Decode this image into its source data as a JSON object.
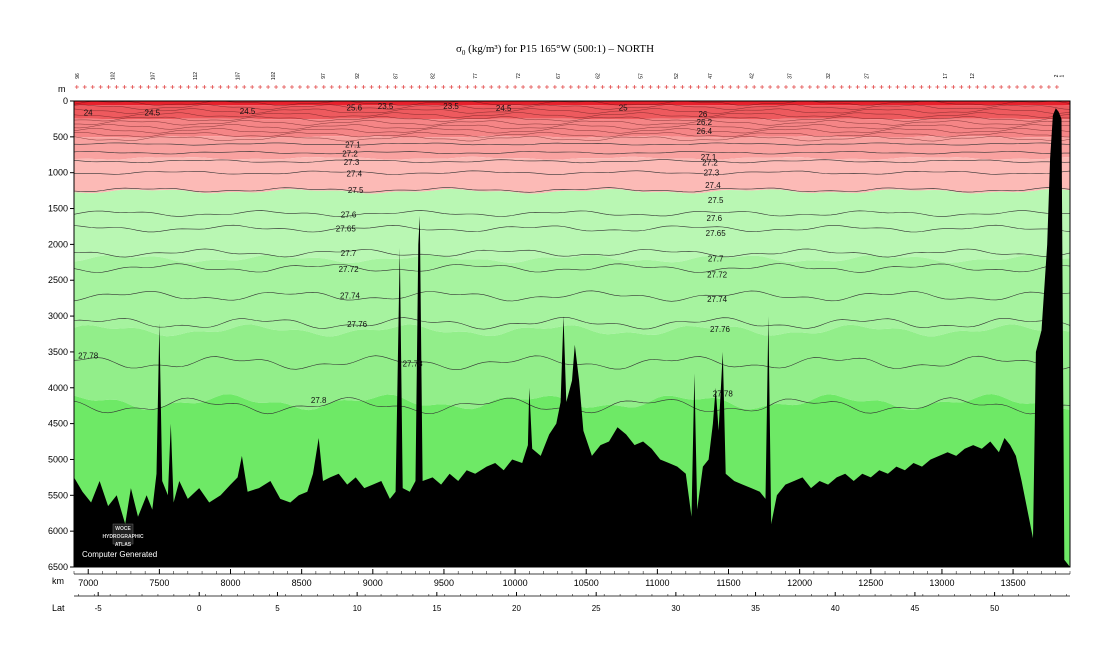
{
  "chart_data": {
    "type": "area",
    "title_prefix": "σ",
    "title_sub": "0",
    "title_rest": " (kg/m³) for P15 165°W (500:1) – NORTH",
    "x_axis_unit": "km",
    "y_axis_unit": "m",
    "lat_axis_label": "Lat",
    "xlim": [
      6900,
      13900
    ],
    "ylim": [
      0,
      6500
    ],
    "x_ticks": [
      7000,
      7500,
      8000,
      8500,
      9000,
      9500,
      10000,
      10500,
      11000,
      11500,
      12000,
      12500,
      13000,
      13500
    ],
    "y_ticks": [
      0,
      500,
      1000,
      1500,
      2000,
      2500,
      3000,
      3500,
      4000,
      4500,
      5000,
      5500,
      6000,
      6500
    ],
    "lat_ticks": [
      {
        "label": "-5",
        "km": 7070
      },
      {
        "label": "0",
        "km": 7780
      },
      {
        "label": "5",
        "km": 8330
      },
      {
        "label": "10",
        "km": 8890
      },
      {
        "label": "15",
        "km": 9450
      },
      {
        "label": "20",
        "km": 10010
      },
      {
        "label": "25",
        "km": 10570
      },
      {
        "label": "30",
        "km": 11130
      },
      {
        "label": "35",
        "km": 11690
      },
      {
        "label": "40",
        "km": 12250
      },
      {
        "label": "45",
        "km": 12810
      },
      {
        "label": "50",
        "km": 13370
      }
    ],
    "station_labels": [
      {
        "label": "96",
        "km": 6920
      },
      {
        "label": "102",
        "km": 7170
      },
      {
        "label": "107",
        "km": 7450
      },
      {
        "label": "112",
        "km": 7750
      },
      {
        "label": "107",
        "km": 8050
      },
      {
        "label": "102",
        "km": 8300
      },
      {
        "label": "97",
        "km": 8650
      },
      {
        "label": "92",
        "km": 8890
      },
      {
        "label": "87",
        "km": 9160
      },
      {
        "label": "82",
        "km": 9420
      },
      {
        "label": "77",
        "km": 9720
      },
      {
        "label": "72",
        "km": 10020
      },
      {
        "label": "67",
        "km": 10300
      },
      {
        "label": "62",
        "km": 10580
      },
      {
        "label": "57",
        "km": 10880
      },
      {
        "label": "52",
        "km": 11130
      },
      {
        "label": "47",
        "km": 11370
      },
      {
        "label": "42",
        "km": 11660
      },
      {
        "label": "37",
        "km": 11930
      },
      {
        "label": "32",
        "km": 12200
      },
      {
        "label": "27",
        "km": 12470
      },
      {
        "label": "17",
        "km": 13020
      },
      {
        "label": "12",
        "km": 13210
      },
      {
        "label": "2",
        "km": 13800
      },
      {
        "label": "1",
        "km": 13840
      }
    ],
    "color_bands": [
      {
        "from": 0,
        "to": 60,
        "color": "#e8202c"
      },
      {
        "from": 60,
        "to": 250,
        "color": "#ee5a5e"
      },
      {
        "from": 250,
        "to": 500,
        "color": "#f58586"
      },
      {
        "from": 500,
        "to": 800,
        "color": "#f9a2a0"
      },
      {
        "from": 800,
        "to": 1260,
        "color": "#fcbab6"
      },
      {
        "from": 1260,
        "to": 2200,
        "color": "#b9f7b3"
      },
      {
        "from": 2200,
        "to": 3200,
        "color": "#a6f39f"
      },
      {
        "from": 3200,
        "to": 4200,
        "color": "#92ee8a"
      },
      {
        "from": 4200,
        "to": 6500,
        "color": "#6ee966"
      }
    ],
    "isopycnals": [
      {
        "label": "27.1",
        "depth": 600
      },
      {
        "label": "27.2",
        "depth": 720
      },
      {
        "label": "27.3",
        "depth": 840
      },
      {
        "label": "27.4",
        "depth": 1000
      },
      {
        "label": "27.5",
        "depth": 1240
      },
      {
        "label": "27.6",
        "depth": 1570
      },
      {
        "label": "27.65",
        "depth": 1780
      },
      {
        "label": "27.7",
        "depth": 2120
      },
      {
        "label": "27.72",
        "depth": 2330
      },
      {
        "label": "27.74",
        "depth": 2720
      },
      {
        "label": "27.76",
        "depth": 3100
      },
      {
        "label": "27.78",
        "depth": 3650
      },
      {
        "label": "27.8",
        "depth": 4250
      }
    ],
    "contour_labels": [
      {
        "text": "24",
        "km": 7000,
        "depth": 160
      },
      {
        "text": "24.5",
        "km": 7450,
        "depth": 160
      },
      {
        "text": "24.5",
        "km": 8120,
        "depth": 140
      },
      {
        "text": "23.5",
        "km": 9090,
        "depth": 70
      },
      {
        "text": "23.5",
        "km": 9550,
        "depth": 70
      },
      {
        "text": "24.5",
        "km": 9920,
        "depth": 100
      },
      {
        "text": "25",
        "km": 10760,
        "depth": 90
      },
      {
        "text": "25.6",
        "km": 8870,
        "depth": 90
      },
      {
        "text": "26",
        "km": 11320,
        "depth": 180
      },
      {
        "text": "26.2",
        "km": 11330,
        "depth": 290
      },
      {
        "text": "26.4",
        "km": 11330,
        "depth": 420
      },
      {
        "text": "27.1",
        "km": 8860,
        "depth": 610
      },
      {
        "text": "27.2",
        "km": 8840,
        "depth": 730
      },
      {
        "text": "27.3",
        "km": 8850,
        "depth": 850
      },
      {
        "text": "27.4",
        "km": 8870,
        "depth": 1010
      },
      {
        "text": "27.5",
        "km": 8880,
        "depth": 1240
      },
      {
        "text": "27.6",
        "km": 8830,
        "depth": 1580
      },
      {
        "text": "27.65",
        "km": 8810,
        "depth": 1780
      },
      {
        "text": "27.7",
        "km": 8830,
        "depth": 2120
      },
      {
        "text": "27.72",
        "km": 8830,
        "depth": 2340
      },
      {
        "text": "27.74",
        "km": 8840,
        "depth": 2710
      },
      {
        "text": "27.76",
        "km": 8890,
        "depth": 3110
      },
      {
        "text": "27.78",
        "km": 7000,
        "depth": 3550
      },
      {
        "text": "27.78",
        "km": 9280,
        "depth": 3660
      },
      {
        "text": "27.8",
        "km": 8620,
        "depth": 4170
      },
      {
        "text": "27.1",
        "km": 11360,
        "depth": 780
      },
      {
        "text": "27.2",
        "km": 11370,
        "depth": 860
      },
      {
        "text": "27.3",
        "km": 11380,
        "depth": 1000
      },
      {
        "text": "27.4",
        "km": 11390,
        "depth": 1170
      },
      {
        "text": "27.5",
        "km": 11410,
        "depth": 1380
      },
      {
        "text": "27.6",
        "km": 11400,
        "depth": 1630
      },
      {
        "text": "27.65",
        "km": 11410,
        "depth": 1840
      },
      {
        "text": "27.7",
        "km": 11410,
        "depth": 2200
      },
      {
        "text": "27.72",
        "km": 11420,
        "depth": 2420
      },
      {
        "text": "27.74",
        "km": 11420,
        "depth": 2760
      },
      {
        "text": "27.76",
        "km": 11440,
        "depth": 3180
      },
      {
        "text": "27.78",
        "km": 11460,
        "depth": 4080
      }
    ],
    "bathymetry": [
      [
        6900,
        5250
      ],
      [
        6960,
        5450
      ],
      [
        7020,
        5600
      ],
      [
        7080,
        5300
      ],
      [
        7140,
        5650
      ],
      [
        7200,
        5500
      ],
      [
        7260,
        5900
      ],
      [
        7300,
        5400
      ],
      [
        7350,
        5800
      ],
      [
        7410,
        5500
      ],
      [
        7450,
        5700
      ],
      [
        7480,
        5200
      ],
      [
        7500,
        3100
      ],
      [
        7520,
        5300
      ],
      [
        7560,
        5500
      ],
      [
        7580,
        4500
      ],
      [
        7600,
        5600
      ],
      [
        7640,
        5300
      ],
      [
        7700,
        5550
      ],
      [
        7780,
        5400
      ],
      [
        7850,
        5600
      ],
      [
        7930,
        5500
      ],
      [
        8000,
        5350
      ],
      [
        8050,
        5250
      ],
      [
        8080,
        4950
      ],
      [
        8120,
        5450
      ],
      [
        8200,
        5400
      ],
      [
        8280,
        5300
      ],
      [
        8350,
        5550
      ],
      [
        8420,
        5600
      ],
      [
        8480,
        5500
      ],
      [
        8540,
        5450
      ],
      [
        8580,
        5200
      ],
      [
        8620,
        4700
      ],
      [
        8650,
        5300
      ],
      [
        8700,
        5250
      ],
      [
        8760,
        5200
      ],
      [
        8820,
        5350
      ],
      [
        8880,
        5250
      ],
      [
        8940,
        5400
      ],
      [
        9000,
        5350
      ],
      [
        9060,
        5300
      ],
      [
        9120,
        5550
      ],
      [
        9160,
        5450
      ],
      [
        9190,
        2050
      ],
      [
        9210,
        5400
      ],
      [
        9260,
        5450
      ],
      [
        9300,
        5300
      ],
      [
        9320,
        2000
      ],
      [
        9330,
        1600
      ],
      [
        9350,
        5300
      ],
      [
        9420,
        5250
      ],
      [
        9480,
        5350
      ],
      [
        9540,
        5200
      ],
      [
        9600,
        5300
      ],
      [
        9660,
        5150
      ],
      [
        9720,
        5200
      ],
      [
        9800,
        5100
      ],
      [
        9860,
        5050
      ],
      [
        9920,
        5150
      ],
      [
        9980,
        5000
      ],
      [
        10050,
        5050
      ],
      [
        10090,
        4800
      ],
      [
        10100,
        4000
      ],
      [
        10120,
        4850
      ],
      [
        10180,
        4950
      ],
      [
        10240,
        4650
      ],
      [
        10290,
        4500
      ],
      [
        10320,
        4200
      ],
      [
        10340,
        3000
      ],
      [
        10360,
        4200
      ],
      [
        10400,
        3900
      ],
      [
        10420,
        3400
      ],
      [
        10450,
        3900
      ],
      [
        10480,
        4600
      ],
      [
        10540,
        4950
      ],
      [
        10600,
        4800
      ],
      [
        10660,
        4750
      ],
      [
        10720,
        4550
      ],
      [
        10780,
        4650
      ],
      [
        10840,
        4800
      ],
      [
        10900,
        4750
      ],
      [
        10960,
        4850
      ],
      [
        11020,
        5000
      ],
      [
        11080,
        5050
      ],
      [
        11140,
        5100
      ],
      [
        11200,
        5200
      ],
      [
        11240,
        5800
      ],
      [
        11260,
        3800
      ],
      [
        11280,
        5700
      ],
      [
        11320,
        5100
      ],
      [
        11360,
        5000
      ],
      [
        11390,
        4500
      ],
      [
        11410,
        4000
      ],
      [
        11430,
        4600
      ],
      [
        11460,
        3500
      ],
      [
        11480,
        5200
      ],
      [
        11540,
        5300
      ],
      [
        11600,
        5350
      ],
      [
        11660,
        5400
      ],
      [
        11720,
        5450
      ],
      [
        11760,
        5550
      ],
      [
        11780,
        3000
      ],
      [
        11800,
        5900
      ],
      [
        11840,
        5500
      ],
      [
        11900,
        5350
      ],
      [
        11960,
        5300
      ],
      [
        12020,
        5250
      ],
      [
        12080,
        5400
      ],
      [
        12140,
        5300
      ],
      [
        12200,
        5350
      ],
      [
        12260,
        5250
      ],
      [
        12320,
        5200
      ],
      [
        12380,
        5300
      ],
      [
        12440,
        5200
      ],
      [
        12500,
        5250
      ],
      [
        12560,
        5150
      ],
      [
        12620,
        5200
      ],
      [
        12680,
        5100
      ],
      [
        12740,
        5150
      ],
      [
        12800,
        5050
      ],
      [
        12860,
        5100
      ],
      [
        12920,
        5000
      ],
      [
        12980,
        4950
      ],
      [
        13040,
        4900
      ],
      [
        13100,
        4950
      ],
      [
        13160,
        4850
      ],
      [
        13220,
        4800
      ],
      [
        13280,
        4850
      ],
      [
        13340,
        4750
      ],
      [
        13400,
        4900
      ],
      [
        13440,
        4700
      ],
      [
        13480,
        4800
      ],
      [
        13520,
        4950
      ],
      [
        13560,
        5300
      ],
      [
        13600,
        5700
      ],
      [
        13640,
        6100
      ],
      [
        13660,
        3500
      ],
      [
        13700,
        3200
      ],
      [
        13740,
        2000
      ],
      [
        13760,
        800
      ],
      [
        13780,
        200
      ],
      [
        13800,
        100
      ],
      [
        13820,
        150
      ],
      [
        13840,
        250
      ],
      [
        13860,
        6400
      ]
    ]
  },
  "credit": {
    "logo_line1": "WOCE",
    "logo_line2": "HYDROGRAPHIC",
    "logo_line3": "ATLAS",
    "text": "Computer Generated"
  }
}
